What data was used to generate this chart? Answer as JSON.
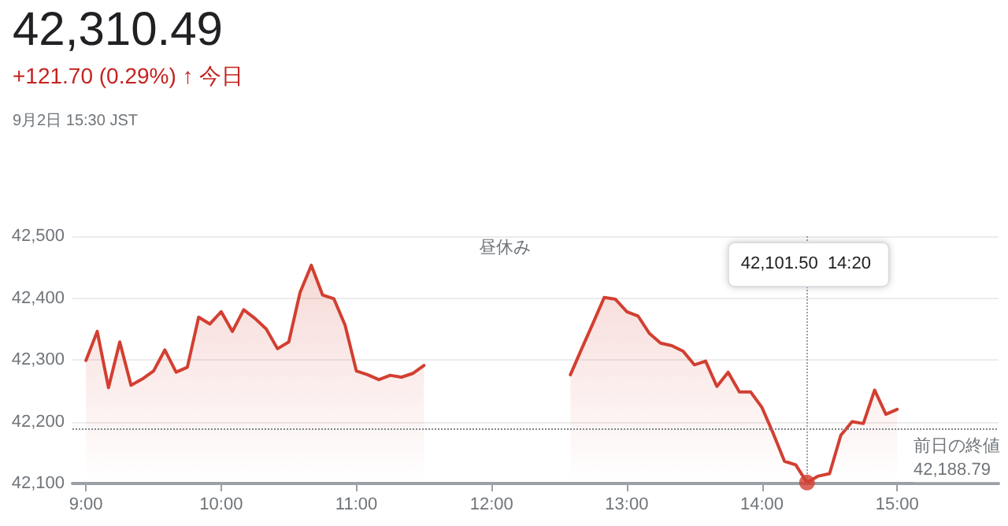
{
  "chart_data": {
    "type": "area",
    "title": "42,310.49",
    "subtitle": "+121.70 (0.29%) ↑ 今日",
    "annotations": [
      "9月2日 15:30 JST",
      "昼休み",
      "42,101.50  14:20"
    ],
    "series": [
      {
        "color": "#d23f31",
        "x": [
          9,
          9.0833,
          9.1667,
          9.25,
          9.3333,
          9.4167,
          9.5,
          9.5833,
          9.6667,
          9.75,
          9.8333,
          9.9167,
          10,
          10.0833,
          10.1667,
          10.25,
          10.3333,
          10.4167,
          10.5,
          10.5833,
          10.6667,
          10.75,
          10.8333,
          10.9167,
          11,
          11.0833,
          11.1667,
          11.25,
          11.3333,
          11.4167,
          11.5,
          12,
          12.5833,
          12.6667,
          12.75,
          12.8333,
          12.9167,
          13,
          13.0833,
          13.1667,
          13.25,
          13.3333,
          13.4167,
          13.5,
          13.5833,
          13.6667,
          13.75,
          13.8333,
          13.9167,
          14,
          14.0833,
          14.1667,
          14.25,
          14.3333,
          14.4167,
          14.5,
          14.5833,
          14.6667,
          14.75,
          14.8333,
          14.9167,
          15
        ],
        "values": [
          42299,
          42346,
          42255,
          42329,
          42259,
          42269,
          42282,
          42316,
          42280,
          42288,
          42369,
          42358,
          42378,
          42346,
          42381,
          42367,
          42350,
          42318,
          42329,
          42409,
          42453,
          42405,
          42399,
          42356,
          42282,
          42276,
          42268,
          42275,
          42272,
          42278,
          42291,
          null,
          42276,
          42318,
          42359,
          42401,
          42398,
          42378,
          42371,
          42343,
          42327,
          42323,
          42314,
          42292,
          42298,
          42257,
          42280,
          42248,
          42248,
          42223,
          42181,
          42136,
          42130,
          42101.5,
          42112,
          42116,
          42178,
          42200,
          42197,
          42251,
          42212,
          42220
        ]
      },
      {
        "type": "scatter",
        "color": "#d23f31",
        "marker": "circle",
        "x": [
          14.3333
        ],
        "values": [
          42101.5
        ]
      }
    ],
    "xlim": [
      8.9,
      15.75
    ],
    "xticks": [
      {
        "value": 9,
        "label": "9:00"
      },
      {
        "value": 10,
        "label": "10:00"
      },
      {
        "value": 11,
        "label": "11:00"
      },
      {
        "value": 12,
        "label": "12:00"
      },
      {
        "value": 13,
        "label": "13:00"
      },
      {
        "value": 14,
        "label": "14:00"
      },
      {
        "value": 15,
        "label": "15:00"
      }
    ],
    "ylim": [
      42100,
      42500
    ],
    "yticks": [
      {
        "value": 42100,
        "label": "42,100"
      },
      {
        "value": 42200,
        "label": "42,200"
      },
      {
        "value": 42300,
        "label": "42,300"
      },
      {
        "value": 42400,
        "label": "42,400"
      },
      {
        "value": 42500,
        "label": "42,500"
      }
    ],
    "ref_lines": [
      {
        "axis": "y",
        "value": 42188.79,
        "label": "前日の終値\n42,188.79",
        "color": "#80868b",
        "line_style": "dotted"
      },
      {
        "axis": "x",
        "value": 14.3333,
        "color": "#9aa0a6",
        "line_style": "dotted"
      }
    ],
    "grid": "y"
  }
}
